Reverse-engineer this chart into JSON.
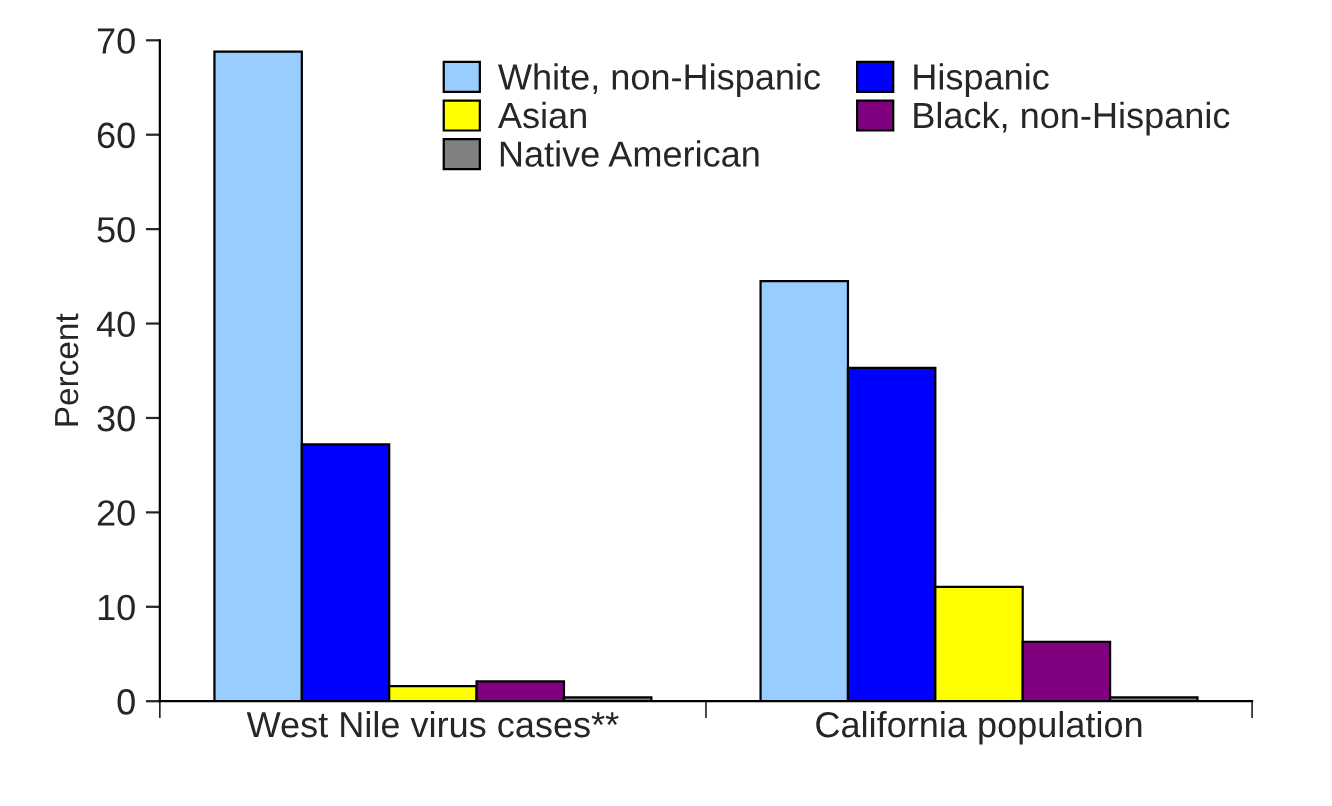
{
  "chart_data": {
    "type": "bar",
    "ylabel": "Percent",
    "categories": [
      "West Nile virus cases**",
      "California population"
    ],
    "series": [
      {
        "name": "White, non-Hispanic",
        "color": "#99ccff",
        "values": [
          68.8,
          44.5
        ]
      },
      {
        "name": "Hispanic",
        "color": "#0000ff",
        "values": [
          27.2,
          35.3
        ]
      },
      {
        "name": "Asian",
        "color": "#ffff00",
        "values": [
          1.6,
          12.1
        ]
      },
      {
        "name": "Black, non-Hispanic",
        "color": "#800080",
        "values": [
          2.1,
          6.3
        ]
      },
      {
        "name": "Native American",
        "color": "#808080",
        "values": [
          0.4,
          0.4
        ]
      }
    ],
    "ylim": [
      0,
      70
    ],
    "yticks": [
      0,
      10,
      20,
      30,
      40,
      50,
      60,
      70
    ],
    "grid": false,
    "legend": "top right"
  }
}
